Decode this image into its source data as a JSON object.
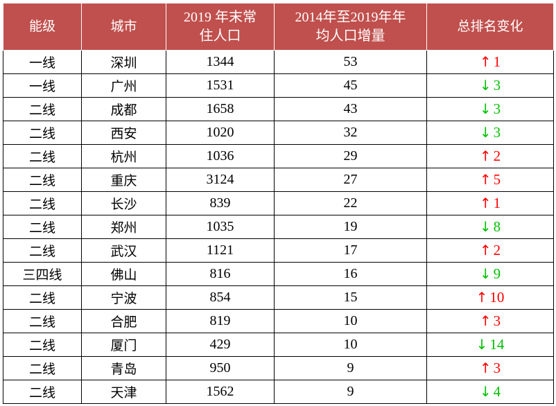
{
  "headers": [
    "能级",
    "城市",
    "2019 年末常\n住人口",
    "2014年至2019年年\n均人口增量",
    "总排名变化"
  ],
  "rows": [
    {
      "tier": "一线",
      "city": "深圳",
      "population": "1344",
      "increment": "53",
      "direction": "up",
      "arrow": "↑",
      "change": "1"
    },
    {
      "tier": "一线",
      "city": "广州",
      "population": "1531",
      "increment": "45",
      "direction": "down",
      "arrow": "↓",
      "change": "3"
    },
    {
      "tier": "二线",
      "city": "成都",
      "population": "1658",
      "increment": "43",
      "direction": "down",
      "arrow": "↓",
      "change": "3"
    },
    {
      "tier": "二线",
      "city": "西安",
      "population": "1020",
      "increment": "32",
      "direction": "down",
      "arrow": "↓",
      "change": "3"
    },
    {
      "tier": "二线",
      "city": "杭州",
      "population": "1036",
      "increment": "29",
      "direction": "up",
      "arrow": "↑",
      "change": "2"
    },
    {
      "tier": "二线",
      "city": "重庆",
      "population": "3124",
      "increment": "27",
      "direction": "up",
      "arrow": "↑",
      "change": "5"
    },
    {
      "tier": "二线",
      "city": "长沙",
      "population": "839",
      "increment": "22",
      "direction": "up",
      "arrow": "↑",
      "change": "1"
    },
    {
      "tier": "二线",
      "city": "郑州",
      "population": "1035",
      "increment": "19",
      "direction": "down",
      "arrow": "↓",
      "change": "8"
    },
    {
      "tier": "二线",
      "city": "武汉",
      "population": "1121",
      "increment": "17",
      "direction": "up",
      "arrow": "↑",
      "change": "2"
    },
    {
      "tier": "三四线",
      "city": "佛山",
      "population": "816",
      "increment": "16",
      "direction": "down",
      "arrow": "↓",
      "change": "9"
    },
    {
      "tier": "二线",
      "city": "宁波",
      "population": "854",
      "increment": "15",
      "direction": "up",
      "arrow": "↑",
      "change": "10"
    },
    {
      "tier": "二线",
      "city": "合肥",
      "population": "819",
      "increment": "10",
      "direction": "up",
      "arrow": "↑",
      "change": "3"
    },
    {
      "tier": "二线",
      "city": "厦门",
      "population": "429",
      "increment": "10",
      "direction": "down",
      "arrow": "↓",
      "change": "14"
    },
    {
      "tier": "二线",
      "city": "青岛",
      "population": "950",
      "increment": "9",
      "direction": "up",
      "arrow": "↑",
      "change": "3"
    },
    {
      "tier": "二线",
      "city": "天津",
      "population": "1562",
      "increment": "9",
      "direction": "down",
      "arrow": "↓",
      "change": "4"
    }
  ],
  "colors": {
    "header_bg": "#c0504d",
    "header_text": "#ffffff",
    "up": "#ff0000",
    "down": "#00c000",
    "border": "#000000"
  }
}
